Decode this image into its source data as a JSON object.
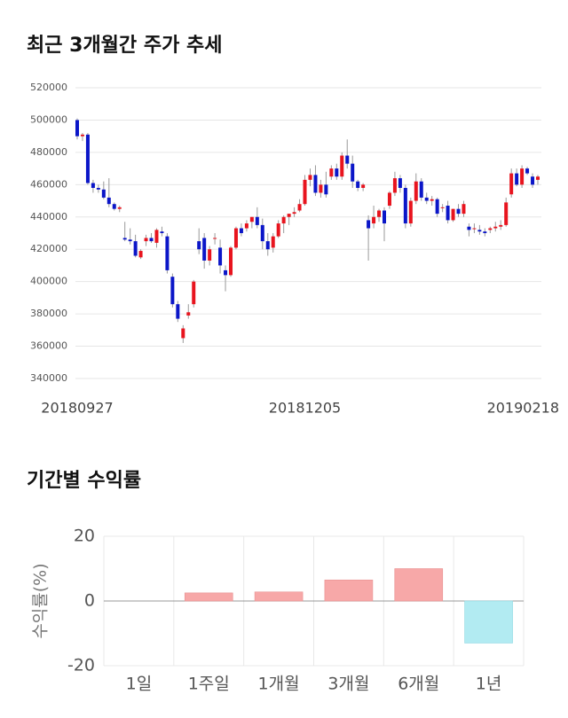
{
  "chart_data": [
    {
      "type": "candlestick",
      "title": "최근 3개월간 주가 추세",
      "categories": [
        "20180927",
        null,
        null,
        null,
        null,
        null,
        null,
        null,
        null,
        null,
        null,
        null,
        null,
        null,
        null,
        null,
        null,
        null,
        null,
        null,
        null,
        null,
        null,
        null,
        null,
        null,
        null,
        null,
        null,
        null,
        null,
        null,
        null,
        null,
        null,
        null,
        null,
        null,
        null,
        null,
        null,
        null,
        null,
        "20181205",
        null,
        null,
        null,
        null,
        null,
        null,
        null,
        null,
        null,
        null,
        null,
        null,
        null,
        null,
        null,
        null,
        null,
        null,
        null,
        null,
        null,
        null,
        null,
        null,
        null,
        null,
        null,
        null,
        null,
        null,
        null,
        null,
        null,
        null,
        null,
        null,
        null,
        null,
        null,
        null,
        null,
        null,
        null,
        "20190218"
      ],
      "open": [
        500000,
        490000,
        491000,
        461000,
        458000,
        457000,
        452000,
        448000,
        445000,
        427000,
        426000,
        425000,
        415000,
        425000,
        427000,
        424000,
        431000,
        428000,
        403000,
        386000,
        365000,
        379000,
        386000,
        425000,
        427000,
        413000,
        427000,
        421000,
        407000,
        404000,
        421000,
        433000,
        433000,
        437000,
        440000,
        435000,
        425000,
        421000,
        428000,
        436000,
        440000,
        442000,
        444000,
        448000,
        463000,
        466000,
        455000,
        460000,
        465000,
        470000,
        465000,
        478000,
        473000,
        462000,
        458000,
        438000,
        436000,
        440000,
        444000,
        447000,
        455000,
        464000,
        458000,
        436000,
        450000,
        462000,
        452000,
        450000,
        451000,
        446000,
        447000,
        438000,
        445000,
        442000,
        434000,
        433000,
        432000,
        431000,
        432000,
        433000,
        434000,
        435000,
        454000,
        467000,
        460000,
        470000,
        465000,
        463000
      ],
      "high": [
        501000,
        492000,
        492000,
        463000,
        460000,
        462000,
        464000,
        449000,
        447000,
        437000,
        433000,
        429000,
        420000,
        429000,
        430000,
        433000,
        434000,
        430000,
        405000,
        388000,
        373000,
        386000,
        401000,
        433000,
        430000,
        422000,
        430000,
        426000,
        410000,
        422000,
        434000,
        436000,
        438000,
        440000,
        446000,
        439000,
        430000,
        430000,
        438000,
        441000,
        442000,
        446000,
        451000,
        466000,
        470000,
        472000,
        463000,
        468000,
        472000,
        473000,
        480000,
        488000,
        478000,
        463000,
        461000,
        441000,
        447000,
        445000,
        446000,
        456000,
        468000,
        466000,
        460000,
        452000,
        467000,
        464000,
        455000,
        453000,
        452000,
        448000,
        450000,
        445000,
        448000,
        450000,
        436000,
        436000,
        435000,
        433000,
        434000,
        437000,
        438000,
        452000,
        470000,
        470000,
        472000,
        471000,
        467000,
        466000
      ],
      "low": [
        488000,
        487000,
        460000,
        455000,
        455000,
        451000,
        446000,
        444000,
        443000,
        425000,
        423000,
        415000,
        414000,
        422000,
        424000,
        421000,
        428000,
        405000,
        384000,
        375000,
        362000,
        377000,
        384000,
        417000,
        408000,
        410000,
        423000,
        405000,
        394000,
        403000,
        420000,
        428000,
        431000,
        433000,
        433000,
        420000,
        416000,
        418000,
        427000,
        430000,
        435000,
        440000,
        443000,
        447000,
        459000,
        453000,
        452000,
        452000,
        463000,
        463000,
        463000,
        470000,
        458000,
        456000,
        456000,
        413000,
        433000,
        437000,
        425000,
        445000,
        453000,
        455000,
        433000,
        434000,
        448000,
        450000,
        448000,
        447000,
        440000,
        443000,
        436000,
        437000,
        440000,
        440000,
        428000,
        430000,
        429000,
        428000,
        430000,
        431000,
        432000,
        434000,
        452000,
        459000,
        458000,
        466000,
        458000,
        460000
      ],
      "close": [
        490000,
        491000,
        461000,
        458000,
        457000,
        452000,
        448000,
        445000,
        446000,
        426000,
        425000,
        416000,
        419000,
        427000,
        425000,
        432000,
        430000,
        407000,
        386000,
        377000,
        371000,
        381000,
        400000,
        420000,
        413000,
        420000,
        427000,
        410000,
        404000,
        421000,
        433000,
        430000,
        436000,
        440000,
        435000,
        425000,
        420000,
        428000,
        436000,
        440000,
        442000,
        443000,
        448000,
        463000,
        466000,
        455000,
        460000,
        454000,
        470000,
        465000,
        478000,
        473000,
        462000,
        458000,
        460000,
        433000,
        440000,
        444000,
        436000,
        455000,
        464000,
        458000,
        436000,
        450000,
        462000,
        452000,
        450000,
        451000,
        442000,
        446000,
        438000,
        445000,
        442000,
        448000,
        432000,
        433000,
        431000,
        430000,
        433000,
        434000,
        435000,
        449000,
        467000,
        460000,
        470000,
        467000,
        460000,
        465000
      ],
      "up_color": "#e8141e",
      "down_color": "#0b16c8",
      "ylim": [
        340000,
        520000
      ],
      "yticks": [
        340000,
        360000,
        380000,
        400000,
        420000,
        440000,
        460000,
        480000,
        500000,
        520000
      ],
      "grid": true
    },
    {
      "type": "bar",
      "title": "기간별 수익률",
      "ylabel": "수익률(%)",
      "categories": [
        "1일",
        "1주일",
        "1개월",
        "3개월",
        "6개월",
        "1년"
      ],
      "values": [
        0,
        2.5,
        2.8,
        6.5,
        10,
        -13
      ],
      "positive_color": "#f7a8a8",
      "negative_color": "#b2ebf2",
      "ylim": [
        -20,
        20
      ],
      "yticks": [
        -20,
        0,
        20
      ],
      "grid": true
    }
  ]
}
